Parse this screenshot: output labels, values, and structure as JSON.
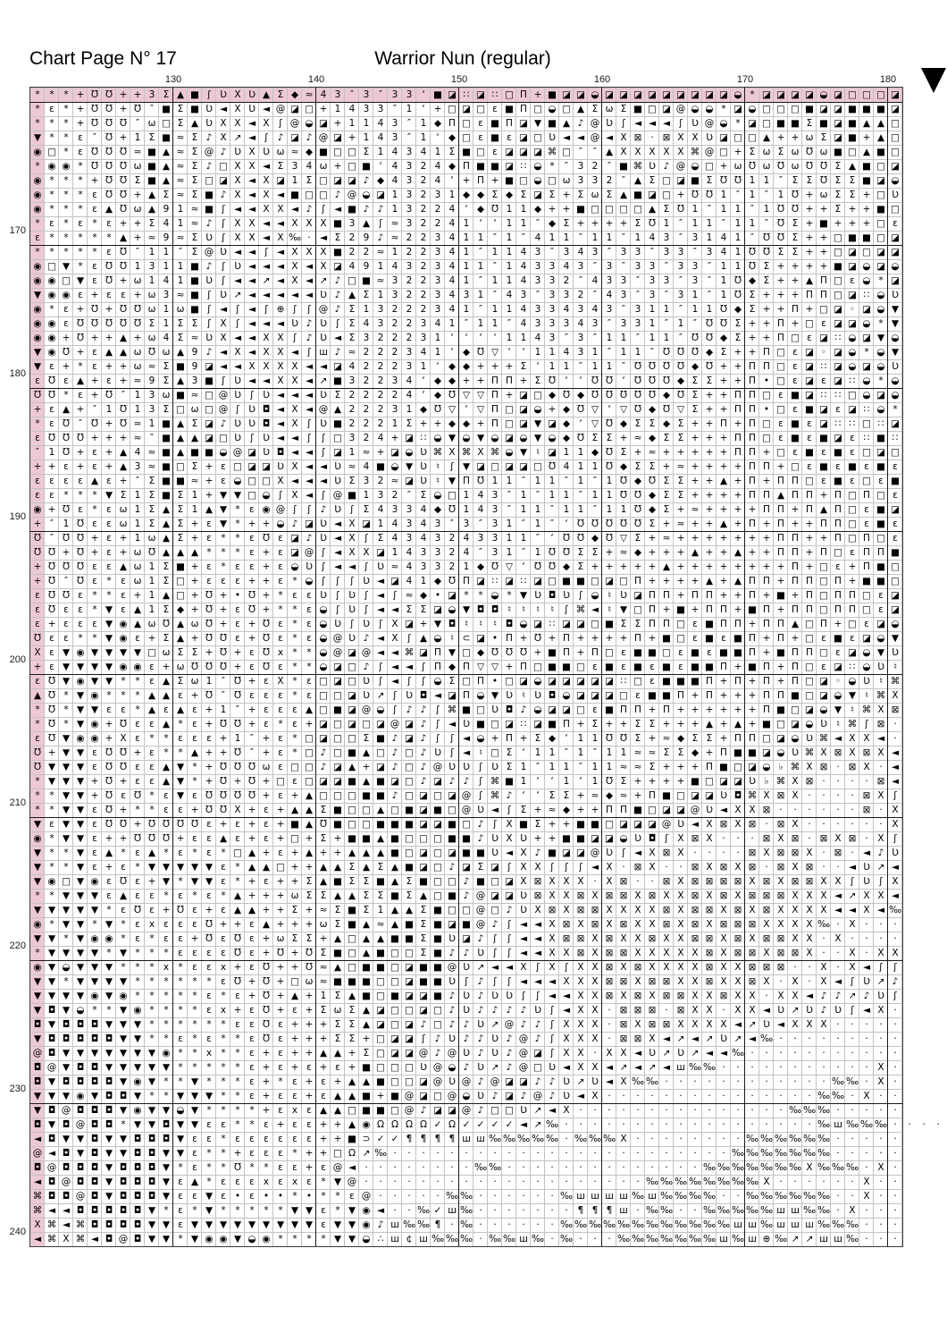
{
  "header": {
    "page_title": "Chart Page N° 17",
    "pattern_title": "Warrior Nun (regular)"
  },
  "colors": {
    "overlap_band": "#ecc9d5",
    "minor_grid_line": "#c3c3c3",
    "major_grid_line": "#1a1a1a",
    "symbol_color": "#000000"
  },
  "axes": {
    "top_labels": [
      "130",
      "140",
      "150",
      "160",
      "170",
      "180"
    ],
    "left_labels": [
      "170",
      "180",
      "190",
      "200",
      "210",
      "220",
      "230",
      "240"
    ]
  },
  "markers": {
    "top_right": "black-down-triangle"
  },
  "grid": {
    "rows": [
      "***+ƱƱ++3Σ▲■ʃƲXƲ▲Σ◆≈43″3″33‘■◪∷◪∷□Π+■◪◪◒◪◪◪◪◪◪◪◪◪◒*◪◪◪◪◒◪□□□◪",
      "*ε*+ƱƱ+Ʊ″■Σ■Ʋ◄XƲ◄@◪□+1433″1‘+□◪□ε■Π□◒□▲ΣωΣ■□◪@◒◒*◪◒□□□■◪◪■■■◪",
      "***+ƱƱƱ″ω□Σ▲ƲXX◄Xʃ@◒◪+1143″1◆Π□ε■Π◪▼■▲♪@Ʋʃ◄◄◄ʃƲ@◒*◪□■■Σ■◪■▲▲□",
      "▼**ε″Ʊ+1Σ■≈Σ♪X↗◄ʃ♪◪♪@◪+143″1‘◆□ε■ε◪□Ʋ◄◄@◄X⊠·⊠XXƲ◪□□▲++ωΣ◪■+▲□",
      "◉□*εƱƱƱ≈■▲≈Σ@♪ƲXƲω≈◆■□□Σ14341Σ■□ε◪◪◪⌘□″″▲XXXXX⌘@□+ΣωΣωƱω■□▲■□",
      "*◉◉*ƱƱƱω■▲≈Σ♪□XX◄Σ34ω+□■‘4324◆Π■■◪∷◒*″32″■⌘Ʋ♪@◒□+ωƱωƱωƱƱΣ▲■□◪",
      "◉***+ƱƱΣ■▲≈Σ□◪X◄X◪1Σ□◪◪♪◆4324‘+Π+■□◒□ω332″▲Σ□◪■ΣƱƱ11″ΣΣƱΣΣ■◪◒",
      "◉***εƱƱ+▲Σ≈Σ■♪X◄X◄■□□♪@◒◪13231◆◆Σ◆Σ◪Σ+ΣωΣ▲■◪□+ƱƱ1″1″1Ʊ+ωΣΣ+□Ʋ",
      "◉***ε▲Ʊω▲91≈■ʃ◄◄XX◄♪ʃ◄■♪♪13224‘◆Ʊ11◆++■□□□□▲ΣƱ1″11″1ƱƱ++Σ++■□",
      "*ε*ε*ε++Σ41≈♪ʃXX◄◄XXX■3▲ʃ≈32241‘‘11″◆Σ++++ΣƱ1″11″11″ƱΣ+■+++□ε",
      "ε*****▲+≈9≈ΣƲʃXX◄X‰·◄Σ29♪≈223411″1″411″11″143″3141″ƱƱΣ++□■■□◪",
      "*****εƱ″11″Σ@Ʋ◄◄ʃ◄XXX■22≈122341″1143″343″33″33″341ƱƱΣΣ++□◪□◪◪",
      "◉□▼*εƱƱ1311■♪ʃƲ◄◄◄X◄X◪4914323411″143343″3″33″33″11ƱΣ++++■◪◒◪◒",
      "◉◉□▼εƱ+ω141■Ʋʃ◄◄↗◄X◄↗♪□■≈322341″114332″433″33″3″1Ʊ◆Σ++▲Π□ε◒*◪",
      "▼◉◉ε+εε+ω3≈■ʃƲ↗◄◄◄◄◄Ʋ♪▲Σ13223431″43″332″43″3″31″1ƱΣ+++ΠΠ□◪∷◒Ʋ",
      "◉*ε+Ʊ+ƱƱω1ω■ʃ◄ʃ◄ʃ⊕ʃʃ@♪Σ13222341″114334343″311″11Ʊ◆Σ++Π+□◪◦◪◒▼",
      "◉◉εƱƱƱƱƱΣ1ΣΣʃXʃ◄◄◄Ʋ♪ƲʃΣ4322341″11″433343″331″1″ƱƱΣ++Π+□ε◪◪◒*▼",
      "◉◉+Ʊ++▲+ω4Σ≈ƲX◄◄XXʃ♪Ʋ◄Σ322231‘‘‘‘1143″3″11″11″ƱƱ◆Σ++Π□ε◪∷◒◪▼◒",
      "▼◉Ʊ+ε▲▲ωƱω▲9♪◄X◄XX◄ʃш♪≈222341‘◆Ʊ▽‘‘11431″11″ƱƱƱ◆Σ++Π□ε◪◦◪◒*◒▼",
      "▼ε+*ε++ω≈Σ■9◪◄◄XXXX◄◄◪422231‘◆◆+++Σ‘11″11″ƱƱƱƱ◆Ʊ++ΠΠ□ε◪∷◪◒◪◒Ʋ",
      "εƱε▲+ε+≈9Σ▲3■ʃƲ◄◄XX◄↗■32234‘◆◆++ΠΠ+ΣƱ‘‘ƱƱ‘ƱƱƱ◆ΣΣ++Π•□ε◪ε◪∷◒*◒",
      "ƱƱ*ε+Ʊ″13ω■≈□@ƲʃƲ◄◄◄ƲΣ22224‘◆Ʊ▽▽Π+◪□◆Ʊ◆ƱƱƱƱƱ◆ƱΣ++ΠΠ□ε■◪∷∷□◒◪◒",
      "+ε▲+″1Ʊ13Σ□ω□@ʃƲ◘◄X◄@▲22231◆Ʊ▽‘▽Π□◪◒+◆Ʊ▽‘▽Ʊ◆Ʊ▽Σ++ΠΠ•□ε■◪ε◪∷◒*",
      "*εƱ″Ʊ+Ʊ≈1■▲Σ◪♪ƲƲ◘◄XʃƲ■2221Σ++◆◆+Π□◪▼◪◆‘▽Ʊ◆ΣΣ◆Σ++Π+Π□ε■ε◪∷∷□∷◪",
      "εƱƱƱ+++≈″■▲▲◪□ƲʃƲ◄◄ʃʃ□324+◪∷◒▼◒▼◒◪◒▼◒◆ƱΣΣ+≈◆ΣΣ+++ΠΠ□ε■ε■◪ε∷■∷",
      "″1Ʊ+ε+▲4≈■▲■■◒@◪Ʋ◘◄◄ʃ◪1≈+◪◒Ʋ⌘X⌘X⌘◒▼♮◪11◆ƱΣ+≈+++++ΠΠ+□ε■ε■ε□◪□",
      "++ε+ε+▲3≈■□Σ+ε□◪◪ƲX◄◄Ʋ≈4■◒▼Ʋ♮ʃ▼◪□◪◪□Ʊ411Ʊ◆ΣΣ+≈++++ΠΠ+□ε■ε■ε■ε",
      "εεεε▲ε+″Σ■■≈+ε◒□□X◄◄◄ƲΣ32≈◪Ʋ♮▼ΠƱ11″11″1″1Ʊ◆ƱΣΣ++▲+Π+ΠΠ□ε■ε□ε■",
      "εε***▼Σ1Σ■Σ1+▼▼□◒ʃX◄ʃ@■132″Σ◒□143″1″11″11ƱƱ◆ΣΣ++++ΠΠ▲ΠΠ+Π□Π□ε",
      "◉+Ʊε*εω1Σ▲Σ1▲▼*ε◉@ʃʃ♪ƲʃΣ4334◆Ʊ143″11″11″11Ʊ◆Σ+≈++++ΠΠ+Π▲Π□ε■◪",
      "+″1Ʊεεω1Σ▲Σ+ε▼*++◒♪◪Ʋ◄X◪14343″3″31″1″‘ƱƱƱƱƱΣ+≈++▲+Π+Π++ΠΠ□ε■ε",
      "Ʊ″ƱƱ+ε+1ω▲Σ+ε**εƱε◪♪Ʋ◄XʃΣ4343243311″‘ƱƱ◆Ʊ▽Σ+≈+++++++ΠΠ++Π□Π□ε",
      "ƱƱ+Ʊ+ε+ωƱ▲▲▲***ε+ε◪@ʃ◄XX◪143324″31″1ƱƱΣΣ+≈◆+++▲++▲++ΠΠ+Π□εΠΠ■",
      "+ƱƱƱεε▲ω1Σ■+ε*εε+ε◒Ʋʃ◄◄ʃƲ≈43321◆Ʊ▽‘ƱƱ◆Σ+++++▲++++++++Π+□ε+Π■□",
      "+Ʊ″Ʊε*εω1Σ□+εεε++ε*◒ʃʃʃƲ◄◪41◆ƱΠ◪∷◪∷◪□■■□◪□Π++++▲+▲ΠΠ+ΠΠ□Π+■■□",
      "εƱƱε**ε+1▲□+Ʊ+•Ʊ+*εεƲʃƲʃ◄ʃ≈◆•◪**◒*▼Ʋ◘Ʋʃ◒♮Ʋ◪ΠΠ+ΠΠ++Π+■+Π□ΠΠ□ε◪",
      "εƱεε*▼ε▲1Σ◆+Ʊ+εƱ+**ε◒ʃƲʃ◄◄ΣΣ◪◒▼◘◘♮♮♮♮ʃ⌘◄♮▼□Π+■+ΠΠ+■Π+ΠΠ□ΠΠ□ε◪",
      "ε+εεε▼◉▲ωƱ▲ωƱ+ε+Ʊε*ε◒ƲʃƲʃX◪+▼◘♮♮♮◘◒◪∷◪◪□■ΣΣΠΠ□ε■ΠΠ+ΠΠ▲□Π+□ε◪◒",
      "Ʊεε**▼◉ε+Σ▲+ƱƱε+Ʊε*ε◒@Ʋ♪◄Xʃ▲◒♮⊂◪•Π+Ʊ+Π++++Π+■□ε■ε■Π+Π+□ε■ε◪◒▼",
      "Xε▼◉▼▼▼▼□ωΣΣ+Ʊ+εƱx**◒@◪@◄◄⌘◪Π▼□◆ƱƱƱ+■Π+Π□ε■■□ε■ε■■Π+■ΠΠ□ε◪◒▼Ʋ",
      "+ε▼▼▼▼◉◉ε+ωƱƱƱ+εƱε**◒◪□♪ʃ◄◄ʃΠ◆Π▽▽+Π□■■□ε■ε■ε■ε■■Π+■Π+Π□ε◪∷◒Ʋ♮",
      "εƱ▼◉▼▼**ε▲Σω1″Ʊ+εX*ε□◪□Ʋʃ◄ʃʃ◒Σ□Π•□◪◒◪◪◪◪◪∷□ε■■■Π+Π+Π+Π□◪◦◒Ʋ♮⌘",
      "▲Ʊ*▼◉***▲▲ε+Ʊ″Ʊεεε*ε□□◪Ʋ↗ʃƲ◘◄◪Π◒▼Ʋ♮Ʋ◘◒◪◪◪□ε■■Π+Π+++ΠΠ■□◪◒▼♮⌘X",
      "*Ʊ*▼▼εε*▲ε▲ε+1″+εεε▲□■◪@◒ʃ♪♪ʃ⌘■□Ʋ◘♪◒◪◪□ε■ΠΠ+Π++++++Π■□◪◒▼♮⌘X⊠",
      "*Ʊ*▼◉+Ʊεε▲*ε+ƱƱ+ε*ε+◪□◪□◪@◪♪ʃ◄Ʋ■□◪∷◪■Π+Σ++ΣΣ+++▲+▲+■□◪◒Ʋ♮⌘ʃ⊠·",
      "εƱ▼◉◉+Xε**εεε+1″+ε*□◪□□Σ■♪◪♪ʃʃ◄◒+Π+Σ◆‘11ƱƱΣ+≈◆ΣΣ+ΠΠ□◪◒Ʋ⌘◄XX◄·",
      "Ʊ+▼▼εƱƱ+ε**▲++Ʊ″+ε*□♪□■▲□♪□♪Ʋʃ◄♮□Σ‘11″1″11≈≈ΣΣ◆+Π■■◪◒Ʋ⌘X⊠X⊠X◄",
      "Ʊ▼▼▼εƱƱεε▲▼*+ƱƱƱωε□□♪◪▲+◪♪□♪@ƲƲʃƲΣ1″11″11≈≈Σ+++Π■□◪◒♭⌘X⊠·⊠X·◄",
      "*▼▼▼+Ʊ+εε▲▼*+Ʊ+Ʊ+□ε□◪◪■▲■◪□♪◪♪♪ʃ⌘■1‘‘1‘1ƱΣ++++■□◪◪Ʋ♭⌘X⊠····⊠◄",
      "**▼▼+ƱεƱ*ε▼εƱƱƱƱ+ε+▲□□□■■♪□◪□◪@ʃ⌘♪‘‘ΣΣ+≈◆≈+Π■□◪◪Ʋ◘⌘X⊠X····⊠Xʃ",
      "**▼▼εƱ+**εε+ƱƱX+ε+▲▲Σ■□□▲□■◪■□@Ʋ◄ʃΣ+≈◆++ΠΠ■□◪◪@Ʋ◄XX⊠······⊠·X",
      "▼ε▼▼εƱƱ+ƱƱƱƱε+ε+ε+■▲Ʊ■□□■■■◪◪■□♪ʃX■Σ++■■□◪◪◪@Ʋ◄X⊠X⊠·⊠X······X",
      "◉*▼▼ε++ƱƱƱ+εε▲ε+ε+□+Σ+■■▲■□□□■■♪ƲXƲ++■■◪◪◒Ʋ◘ʃX⊠X···⊠X⊠·⊠X⊠·Xʃ",
      "▼**▼ε▲*ε▲*ε*ε*□▲+ε+▲++▲▲▲■□◪□◪■■Ʋ◄X♪■◪◪@Ʋʃ◄X⊠X····⊠X⊠⊠X·⊠·◄♪Ʋ",
      "▼**▼ε+ε*▼▼▼▼▼ε*▲▲□++▲▲Σ▲Σ▲■◪□♪◪Σ◪ʃXXʃʃʃ◄X·⊠X··⊠X⊠X⊠·⊠X⊠··◄Ʋ↗◄",
      "▼◉□▼◉εƱε+▼*▼▼ε*+ε++Σ▲■ΣΣ■▲Σ■□□♪■□◪X⊠XXX·X⊠··⊠X⊠⊠⊠⊠X⊠X⊠⊠XXʃƲʃX",
      "**▼▼▼ε▲εε*ε*ε*▲+++ωΣΣ▲▲ΣΣ■Σ▲□■♪@◪◪Ʋ⊠XX⊠X⊠⊠X⊠XX⊠X⊠X⊠⊠⊠XXX◄↗XX◄",
      "▼▼▼▼▼*εƱε+Ʊε+ε▲▲++Σ+≈Σ■Σ1▲▲Σ■□□@□♪ƲX⊠X⊠⊠XXXX⊠X⊠⊠X⊠X⊠XXXX◄◄X◄‰",
      "◉*▼▼*▼*εxεεεƱ++ε▲+++ωΣ■▲≈▲■Σ■◪■@♪ʃ◄◄X⊠X⊠X⊠XX⊠X⊠X⊠⊠⊠XXXX‰·X···",
      "▼▼*▼◉◉*ε*εε+ƱεƱε+ωΣΣ+▲□▲▲■■Σ■Ʋ◪♪ʃʃ◄◄X⊠⊠X⊠XX⊠XX⊠⊠X⊠X⊠⊠XX·X····",
      "*▼▼▼▼*▼***εεεεƱε+Ʊ+ƱΣ■□▲■□□Σ■♪♪Ʋʃʃ◄◄XX⊠X⊠⊠XXXXX⊠X⊠⊠X⊠⊠X··X·XX",
      "◉▼◒▼▼▼***x*εεx+εƱ++Ʊ≈▲□■■□◪■■@Ʋ↗◄◄XʃXʃXX⊠X⊠XXXX⊠XX⊠⊠⊠··X·X◄ʃʃ",
      "▼▼*▼▼▼▼******εƱ+Ʊ+□ω≈■■■□□◪■■Ʋʃ♪ʃʃ◄◄◄XXX⊠⊠X⊠⊠XX⊠XX⊠X·X·X◄ʃƲ↗♪",
      "▼▼▼▼◉▼◉*****ε*ε+Ʊ+▲+1Σ▲■□■◪◪■♪Ʋ♪ƲƲʃʃ◄◄XX⊠X⊠X⊠⊠XX⊠XX·XX◄♪♪↗♪Ʋʃ",
      "▼◘▼◒**▼◉****εx+εƱ+ε+ΣωΣ▲◪□□◪□♪Ʋ♪♪♪♪Ʋʃ◄XX·⊠⊠⊠·⊠XX·XX◄Ʋ↗Ʋ♪Ʋʃ◄X·",
      "◘▼◘◘◘▼▼▼******εεƱε+++ΣΣ▲◪□◪♪□♪♪Ʋ↗@♪♪ʃXXX·⊠X⊠⊠XXXX◄↗Ʋ◄XXX·····",
      "▼◘◘◘◘◘▼▼**ε*ε**εƱε+++ΣΣ+□◪◪ʃ♪Ʋ♪♪Ʋ♪@♪ʃXXX·⊠⊠X◄↗◄↗Ʋ↗◄‰·········",
      "@◘▼▼▼▼▼▼▼◉**x**ε+ε++▲▲+Σ□◪◪@♪@Ʋ♪Ʋ♪@◪ʃXX·XX◄Ʋ↗Ʋ↗◄◄‰···········",
      "◘@▼◘◘▼▼▼▼▼*****ε+ε+ε+ε+■□□□Ʋ@◒♪Ʋ↗♪@□Ʋ◄XX◄↗◄↗◄ш‰‰···········X·",
      "◘▼◘◘◘◘▼◉▼**▼***ε+*ε+ε+▲▲■□□◪@Ʋ@♪@◪◪♪♪Ʋ↗Ʋ◄X‰‰············‰‰·X·",
      "▼▼▼◉▼◘◘▼**▼▼▼**ε+εε+ε▲▲■+■@◪□@◒Ʋ♪◪♪@♪Ʋ◄X···············‰‰·X··",
      "▼◘@◘◘◘▼◉▼▼◒▼****+εxε▲▲□■■□@♪◪◪@♪□□Ʋ↗◄X···············‰‰‰·····",
      "◘▼◘@◘◘*▼▼◘▼▼εε**ε+εε++▲◉ΩΩΩΩ✓Ω✓✓✓✓◄↗‰··················‰ш‰‰‰····",
      "◄◘▼▼◘▼▼◘◘◘▼εε*εεεεεε++■⊃✓✓¶¶¶¶шш‰‰‰‰‰·‰‰‰X········‰‰‰‰‰‰·····",
      "@◄◘▼◘▼▼◘◘▼▼ε**+εεε*++□Ω↗‰························‰‰‰‰‰‰‰·····",
      "◘@◘◘◘▼◘◘◘▼*ε**Ʊ**εε+ε@◄········‰‰··············‰‰‰‰‰‰‰X‰‰‰·X·",
      "◄◘@◘◘▼◘◘◘▼ε▲*εεεxεxε*▼@····················‰‰‰‰‰‰‰‰X······X··",
      "⌘◘◘@◘▼◘◘◘▼εε▼ε•ε••*•**ε@·····‰‰······‰шшшш‰ш‰‰‰‰··‰‰‰‰‰‰··X··",
      "⌘◄◄◘◘◘◘◘▼*ε*▼*****▼▼ε*▼◉◄··‰✓ш‰·······¶¶¶ш·‰‰··‰‰‰‰‰шш‰‰·X···",
      "X⌘◄⌘◘◘◘◘▼▼ε▼▼▼▼▼▼▼▼▼ε▼▼◉♪ш‰‰¶·‰······‰‰‰‰‰‰‰‰‰‰‰‰шш‰шшш‰‰‰···",
      "◄⌘X⌘◄◘@◘▼▼*▼◉◉▼◒◉****▼▼◒∴ш¢ш‰‰‰·‰‰ш‰·‰···‰‰‰‰‰‰‰ш‰ш⊕‰↗↗шш‰···"
    ]
  }
}
